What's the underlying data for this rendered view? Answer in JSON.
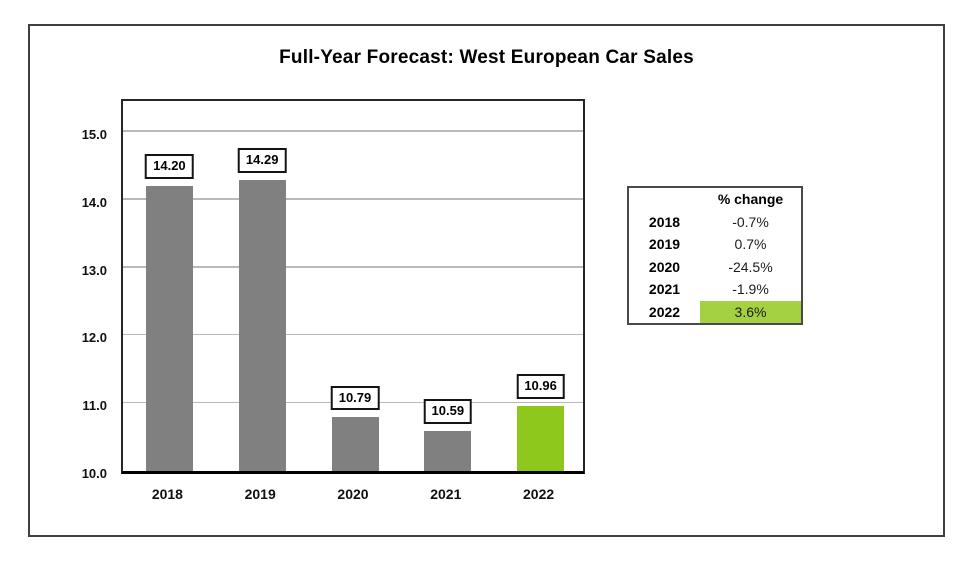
{
  "chart_data": {
    "type": "bar",
    "title": "Full-Year Forecast: West European Car Sales",
    "categories": [
      "2018",
      "2019",
      "2020",
      "2021",
      "2022"
    ],
    "values": [
      14.2,
      14.29,
      10.79,
      10.59,
      10.96
    ],
    "value_labels": [
      "14.20",
      "14.29",
      "10.79",
      "10.59",
      "10.96"
    ],
    "bar_colors": [
      "#808080",
      "#808080",
      "#808080",
      "#808080",
      "#8ec81c"
    ],
    "xlabel": "",
    "ylabel": "",
    "ylim": [
      10.0,
      15.53
    ],
    "ytick_values": [
      15.0,
      14.0,
      13.0,
      12.0,
      11.0,
      10.0
    ],
    "ytick_labels": [
      "15.0",
      "14.0",
      "13.0",
      "12.0",
      "11.0",
      "10.0"
    ],
    "grid": true,
    "legend": "none"
  },
  "table": {
    "header": "% change",
    "rows": [
      {
        "year": "2018",
        "change": "-0.7%",
        "highlight": false
      },
      {
        "year": "2019",
        "change": "0.7%",
        "highlight": false
      },
      {
        "year": "2020",
        "change": "-24.5%",
        "highlight": false
      },
      {
        "year": "2021",
        "change": "-1.9%",
        "highlight": false
      },
      {
        "year": "2022",
        "change": "3.6%",
        "highlight": true
      }
    ]
  },
  "colors": {
    "bar_gray": "#808080",
    "bar_green": "#8ec81c",
    "table_highlight_green": "#a4d142",
    "gridline": "#b9b9b9",
    "frame_border": "#3f3f3f"
  }
}
